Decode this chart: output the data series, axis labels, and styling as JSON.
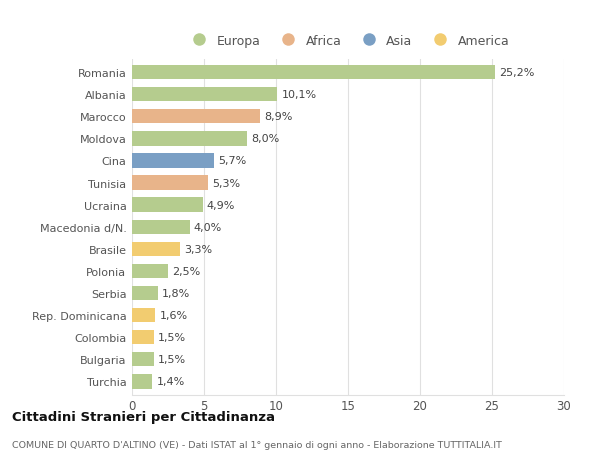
{
  "countries": [
    "Romania",
    "Albania",
    "Marocco",
    "Moldova",
    "Cina",
    "Tunisia",
    "Ucraina",
    "Macedonia d/N.",
    "Brasile",
    "Polonia",
    "Serbia",
    "Rep. Dominicana",
    "Colombia",
    "Bulgaria",
    "Turchia"
  ],
  "values": [
    25.2,
    10.1,
    8.9,
    8.0,
    5.7,
    5.3,
    4.9,
    4.0,
    3.3,
    2.5,
    1.8,
    1.6,
    1.5,
    1.5,
    1.4
  ],
  "labels": [
    "25,2%",
    "10,1%",
    "8,9%",
    "8,0%",
    "5,7%",
    "5,3%",
    "4,9%",
    "4,0%",
    "3,3%",
    "2,5%",
    "1,8%",
    "1,6%",
    "1,5%",
    "1,5%",
    "1,4%"
  ],
  "continents": [
    "Europa",
    "Europa",
    "Africa",
    "Europa",
    "Asia",
    "Africa",
    "Europa",
    "Europa",
    "America",
    "Europa",
    "Europa",
    "America",
    "America",
    "Europa",
    "Europa"
  ],
  "colors": {
    "Europa": "#b5cc8e",
    "Africa": "#e8b48a",
    "Asia": "#7a9fc4",
    "America": "#f2cc70"
  },
  "xlim": [
    0,
    30
  ],
  "xticks": [
    0,
    5,
    10,
    15,
    20,
    25,
    30
  ],
  "title": "Cittadini Stranieri per Cittadinanza",
  "subtitle": "COMUNE DI QUARTO D'ALTINO (VE) - Dati ISTAT al 1° gennaio di ogni anno - Elaborazione TUTTITALIA.IT",
  "bg_color": "#ffffff",
  "grid_color": "#e0e0e0",
  "bar_height": 0.65,
  "label_fontsize": 8.0,
  "ytick_fontsize": 8.0,
  "xtick_fontsize": 8.5
}
